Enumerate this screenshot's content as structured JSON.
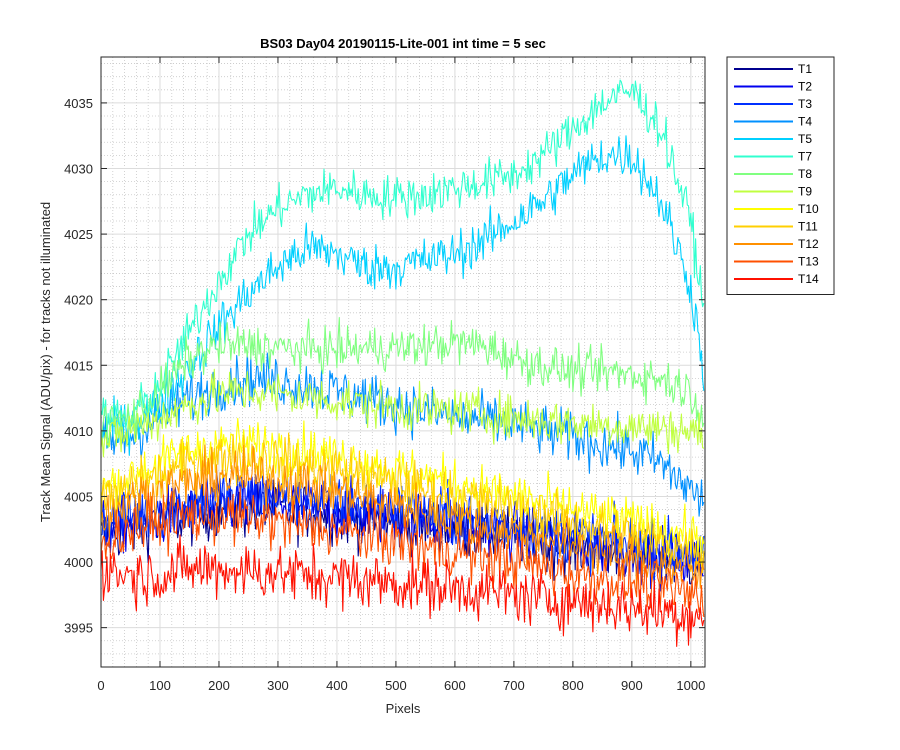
{
  "chart_data": {
    "type": "line",
    "title": "BS03 Day04 20190115-Lite-001 int time = 5 sec",
    "xlabel": "Pixels",
    "ylabel": "Track Mean Signal (ADU/pix) - for tracks not illuminated",
    "xlim": [
      0,
      1024
    ],
    "ylim": [
      3992,
      4038.5
    ],
    "xticks": [
      0,
      100,
      200,
      300,
      400,
      500,
      600,
      700,
      800,
      900,
      1000
    ],
    "yticks": [
      3995,
      4000,
      4005,
      4010,
      4015,
      4020,
      4025,
      4030,
      4035
    ],
    "grid": true,
    "minor_grid": true,
    "legend_position": "outside-top-right",
    "x": [
      0,
      50,
      100,
      150,
      200,
      250,
      300,
      350,
      400,
      450,
      500,
      550,
      600,
      650,
      700,
      750,
      800,
      850,
      900,
      950,
      1000,
      1024
    ],
    "series": [
      {
        "name": "T1",
        "color": "#00008f",
        "noise": 2.0,
        "values": [
          4002,
          4002.5,
          4003,
          4003.5,
          4004,
          4004,
          4004,
          4003.8,
          4003.5,
          4003.2,
          4003,
          4002.8,
          4002.5,
          4002.2,
          4002,
          4001.5,
          4001,
          4000.8,
          4000.5,
          4000.2,
          4000,
          3999.8
        ]
      },
      {
        "name": "T2",
        "color": "#0000ef",
        "noise": 2.0,
        "values": [
          4002.5,
          4003,
          4003.5,
          4004,
          4004.3,
          4004.5,
          4004.5,
          4004.3,
          4004,
          4003.7,
          4003.5,
          4003.2,
          4003,
          4002.7,
          4002.5,
          4002,
          4001.5,
          4001.2,
          4001,
          4000.5,
          4000.2,
          4000
        ]
      },
      {
        "name": "T3",
        "color": "#0030ff",
        "noise": 2.0,
        "values": [
          4003,
          4003.5,
          4004,
          4004.5,
          4005,
          4005,
          4005,
          4004.8,
          4004.5,
          4004.2,
          4004,
          4003.7,
          4003.4,
          4003,
          4002.8,
          4002.4,
          4002,
          4001.6,
          4001.3,
          4001,
          4000.7,
          4000.5
        ]
      },
      {
        "name": "T4",
        "color": "#0090ff",
        "noise": 1.8,
        "values": [
          4009,
          4009.5,
          4011,
          4012.5,
          4013.5,
          4014,
          4013.8,
          4013.5,
          4013,
          4012.5,
          4012,
          4011.5,
          4011,
          4010.8,
          4010.5,
          4010,
          4009.5,
          4009,
          4008.5,
          4007.5,
          4005.5,
          4004.5
        ]
      },
      {
        "name": "T5",
        "color": "#00d0ff",
        "noise": 1.6,
        "values": [
          4010,
          4010.5,
          4012,
          4015,
          4018,
          4020.5,
          4022.5,
          4024,
          4023.5,
          4022.5,
          4022.5,
          4023,
          4023.5,
          4024.5,
          4026,
          4027.5,
          4029.5,
          4031,
          4031,
          4027.5,
          4021,
          4014
        ]
      },
      {
        "name": "T7",
        "color": "#30ffcf",
        "noise": 1.5,
        "values": [
          4011,
          4011,
          4013.5,
          4017.5,
          4021.5,
          4025,
          4027,
          4028,
          4028.5,
          4028,
          4027.8,
          4028,
          4028.5,
          4029,
          4029.5,
          4031,
          4033,
          4035,
          4036,
          4033,
          4026,
          4018.5
        ]
      },
      {
        "name": "T8",
        "color": "#80ff80",
        "noise": 1.5,
        "values": [
          4010.5,
          4011,
          4013,
          4015.5,
          4016.5,
          4016.5,
          4016.3,
          4016.2,
          4016.2,
          4016.3,
          4016.3,
          4016.5,
          4016.7,
          4016.5,
          4015.5,
          4015,
          4014.5,
          4014.5,
          4014.3,
          4014,
          4013,
          4011
        ]
      },
      {
        "name": "T9",
        "color": "#c0ff40",
        "noise": 1.6,
        "values": [
          4009,
          4010,
          4011,
          4012,
          4012.8,
          4013,
          4012.8,
          4012.5,
          4012.3,
          4012,
          4011.8,
          4011.6,
          4011.5,
          4011.3,
          4011,
          4010.8,
          4010.6,
          4010.5,
          4010.3,
          4010.2,
          4010,
          4009.5
        ]
      },
      {
        "name": "T10",
        "color": "#ffff00",
        "noise": 1.7,
        "values": [
          4005.5,
          4006.5,
          4007.5,
          4008.5,
          4009,
          4009,
          4008.8,
          4008.5,
          4008,
          4007.5,
          4007,
          4006.5,
          4006,
          4005.5,
          4005,
          4004.5,
          4004,
          4003.5,
          4003,
          4002.5,
          4002,
          4001.5
        ]
      },
      {
        "name": "T11",
        "color": "#ffcf00",
        "noise": 1.8,
        "values": [
          4004.5,
          4005.5,
          4006.5,
          4007.5,
          4008,
          4008,
          4007.7,
          4007.3,
          4007,
          4006.5,
          4006,
          4005.5,
          4005,
          4004.5,
          4004,
          4003.5,
          4003,
          4002.5,
          4002,
          4001.5,
          4001,
          4000.5
        ]
      },
      {
        "name": "T12",
        "color": "#ff9000",
        "noise": 1.8,
        "values": [
          4003.5,
          4004.5,
          4005.5,
          4006,
          4006.5,
          4006.5,
          4006.2,
          4005.8,
          4005.3,
          4004.8,
          4004.3,
          4003.8,
          4003.3,
          4002.8,
          4002.3,
          4001.8,
          4001.3,
          4000.8,
          4000.3,
          3999.8,
          3999.3,
          3998.8
        ]
      },
      {
        "name": "T13",
        "color": "#ff5000",
        "noise": 1.9,
        "values": [
          4001.5,
          4002.5,
          4003,
          4003.5,
          4003.5,
          4003.3,
          4003,
          4002.7,
          4002.4,
          4002,
          4001.6,
          4001.2,
          4000.8,
          4000.4,
          4000,
          3999.6,
          3999.2,
          3998.8,
          3998.4,
          3998,
          3997.6,
          3997.2
        ]
      },
      {
        "name": "T14",
        "color": "#ff1000",
        "noise": 2.0,
        "values": [
          3999.5,
          3999,
          3999,
          3999.5,
          3999.5,
          3999.3,
          3999.2,
          3999,
          3998.8,
          3998.6,
          3998.4,
          3998.2,
          3998,
          3997.8,
          3997.5,
          3997.2,
          3997,
          3996.8,
          3996.5,
          3996.3,
          3996,
          3995.8
        ]
      }
    ]
  }
}
